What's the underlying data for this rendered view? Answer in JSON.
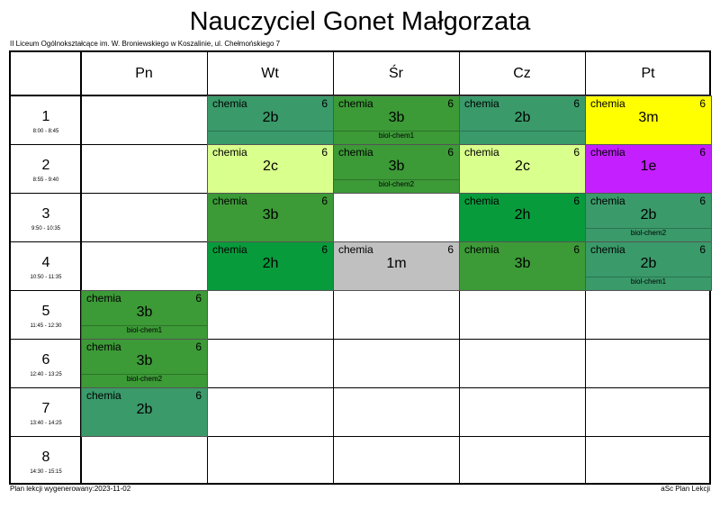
{
  "title": "Nauczyciel Gonet Małgorzata",
  "school": "II Liceum Ogólnokształcące im. W. Broniewskiego w Koszalinie, ul. Chełmońskiego 7",
  "footer_left": "Plan lekcji wygenerowany:2023-11-02",
  "footer_right": "aSc Plan Lekcji",
  "days": [
    "Pn",
    "Wt",
    "Śr",
    "Cz",
    "Pt"
  ],
  "periods": [
    {
      "num": "1",
      "time": "8:00 - 8:45"
    },
    {
      "num": "2",
      "time": "8:55 - 9:40"
    },
    {
      "num": "3",
      "time": "9:50 - 10:35"
    },
    {
      "num": "4",
      "time": "10:50 - 11:35"
    },
    {
      "num": "5",
      "time": "11:45 - 12:30"
    },
    {
      "num": "6",
      "time": "12:40 - 13:25"
    },
    {
      "num": "7",
      "time": "13:40 - 14:25"
    },
    {
      "num": "8",
      "time": "14:30 - 15:15"
    }
  ],
  "lessons": [
    {
      "day": 1,
      "period": 0,
      "subject": "chemia",
      "room": "6",
      "class": "2b",
      "group": "",
      "color": "#3a9a6a"
    },
    {
      "day": 2,
      "period": 0,
      "subject": "chemia",
      "room": "6",
      "class": "3b",
      "group": "biol-chem1",
      "color": "#3c9a37"
    },
    {
      "day": 3,
      "period": 0,
      "subject": "chemia",
      "room": "6",
      "class": "2b",
      "group": "",
      "color": "#3a9a6a"
    },
    {
      "day": 4,
      "period": 0,
      "subject": "chemia",
      "room": "6",
      "class": "3m",
      "group": "",
      "color": "#ffff00"
    },
    {
      "day": 1,
      "period": 1,
      "subject": "chemia",
      "room": "6",
      "class": "2c",
      "group": "",
      "color": "#d9ff8c"
    },
    {
      "day": 2,
      "period": 1,
      "subject": "chemia",
      "room": "6",
      "class": "3b",
      "group": "biol-chem2",
      "color": "#3c9a37"
    },
    {
      "day": 3,
      "period": 1,
      "subject": "chemia",
      "room": "6",
      "class": "2c",
      "group": "",
      "color": "#d9ff8c"
    },
    {
      "day": 4,
      "period": 1,
      "subject": "chemia",
      "room": "6",
      "class": "1e",
      "group": "",
      "color": "#c41fff"
    },
    {
      "day": 1,
      "period": 2,
      "subject": "chemia",
      "room": "6",
      "class": "3b",
      "group": "",
      "color": "#3c9a37"
    },
    {
      "day": 3,
      "period": 2,
      "subject": "chemia",
      "room": "6",
      "class": "2h",
      "group": "",
      "color": "#089b3c"
    },
    {
      "day": 4,
      "period": 2,
      "subject": "chemia",
      "room": "6",
      "class": "2b",
      "group": "biol-chem2",
      "color": "#3a9a6a"
    },
    {
      "day": 1,
      "period": 3,
      "subject": "chemia",
      "room": "6",
      "class": "2h",
      "group": "",
      "color": "#089b3c"
    },
    {
      "day": 2,
      "period": 3,
      "subject": "chemia",
      "room": "6",
      "class": "1m",
      "group": "",
      "color": "#c0c0c0"
    },
    {
      "day": 3,
      "period": 3,
      "subject": "chemia",
      "room": "6",
      "class": "3b",
      "group": "",
      "color": "#3c9a37"
    },
    {
      "day": 4,
      "period": 3,
      "subject": "chemia",
      "room": "6",
      "class": "2b",
      "group": "biol-chem1",
      "color": "#3a9a6a"
    },
    {
      "day": 0,
      "period": 4,
      "subject": "chemia",
      "room": "6",
      "class": "3b",
      "group": "biol-chem1",
      "color": "#3c9a37"
    },
    {
      "day": 0,
      "period": 5,
      "subject": "chemia",
      "room": "6",
      "class": "3b",
      "group": "biol-chem2",
      "color": "#3c9a37"
    },
    {
      "day": 0,
      "period": 6,
      "subject": "chemia",
      "room": "6",
      "class": "2b",
      "group": "",
      "color": "#3a9a6a"
    }
  ]
}
